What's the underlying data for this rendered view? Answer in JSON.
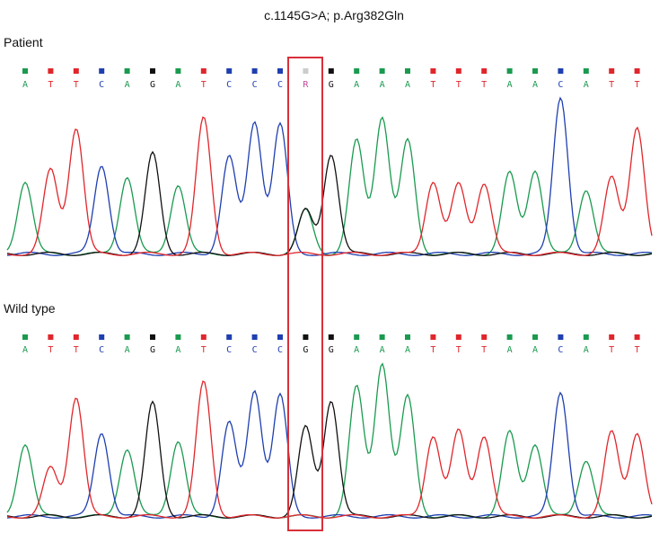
{
  "chart_data": {
    "type": "line",
    "title": "c.1145G>A; p.Arg382Gln",
    "colors": {
      "A": "#1a9a4f",
      "C": "#1f3fb0",
      "G": "#111111",
      "T": "#e0262b",
      "highlight": "#d9303a"
    },
    "highlight_position": 11,
    "panels": [
      {
        "label": "Patient",
        "bases": [
          "A",
          "T",
          "T",
          "C",
          "A",
          "G",
          "A",
          "T",
          "C",
          "C",
          "C",
          "R",
          "G",
          "A",
          "A",
          "A",
          "T",
          "T",
          "T",
          "A",
          "A",
          "C",
          "A",
          "T",
          "T"
        ],
        "quality": [
          "A",
          "T",
          "T",
          "C",
          "A",
          "G",
          "A",
          "T",
          "C",
          "C",
          "C",
          "R",
          "G",
          "A",
          "A",
          "A",
          "T",
          "T",
          "T",
          "A",
          "A",
          "C",
          "A",
          "T",
          "T"
        ],
        "peaks": [
          {
            "base": "A",
            "h": 0.45
          },
          {
            "base": "T",
            "h": 0.52
          },
          {
            "base": "T",
            "h": 0.78
          },
          {
            "base": "C",
            "h": 0.55
          },
          {
            "base": "A",
            "h": 0.48
          },
          {
            "base": "G",
            "h": 0.62
          },
          {
            "base": "A",
            "h": 0.43
          },
          {
            "base": "T",
            "h": 0.84
          },
          {
            "base": "C",
            "h": 0.6
          },
          {
            "base": "C",
            "h": 0.82
          },
          {
            "base": "C",
            "h": 0.8
          },
          {
            "base": "R",
            "h": 0.27
          },
          {
            "base": "G",
            "h": 0.62
          },
          {
            "base": "A",
            "h": 0.7
          },
          {
            "base": "A",
            "h": 0.85
          },
          {
            "base": "A",
            "h": 0.7
          },
          {
            "base": "T",
            "h": 0.45
          },
          {
            "base": "T",
            "h": 0.43
          },
          {
            "base": "T",
            "h": 0.44
          },
          {
            "base": "A",
            "h": 0.5
          },
          {
            "base": "A",
            "h": 0.52
          },
          {
            "base": "C",
            "h": 0.97
          },
          {
            "base": "A",
            "h": 0.4
          },
          {
            "base": "T",
            "h": 0.47
          },
          {
            "base": "T",
            "h": 0.79
          }
        ]
      },
      {
        "label": "Wild type",
        "bases": [
          "A",
          "T",
          "T",
          "C",
          "A",
          "G",
          "A",
          "T",
          "C",
          "C",
          "C",
          "G",
          "G",
          "A",
          "A",
          "A",
          "T",
          "T",
          "T",
          "A",
          "A",
          "C",
          "A",
          "T",
          "T"
        ],
        "peaks": [
          {
            "base": "A",
            "h": 0.45
          },
          {
            "base": "T",
            "h": 0.3
          },
          {
            "base": "T",
            "h": 0.74
          },
          {
            "base": "C",
            "h": 0.52
          },
          {
            "base": "A",
            "h": 0.42
          },
          {
            "base": "G",
            "h": 0.7
          },
          {
            "base": "A",
            "h": 0.47
          },
          {
            "base": "T",
            "h": 0.83
          },
          {
            "base": "C",
            "h": 0.58
          },
          {
            "base": "C",
            "h": 0.78
          },
          {
            "base": "C",
            "h": 0.75
          },
          {
            "base": "G",
            "h": 0.55
          },
          {
            "base": "G",
            "h": 0.72
          },
          {
            "base": "A",
            "h": 0.8
          },
          {
            "base": "A",
            "h": 0.95
          },
          {
            "base": "A",
            "h": 0.74
          },
          {
            "base": "T",
            "h": 0.5
          },
          {
            "base": "T",
            "h": 0.53
          },
          {
            "base": "T",
            "h": 0.5
          },
          {
            "base": "A",
            "h": 0.52
          },
          {
            "base": "A",
            "h": 0.45
          },
          {
            "base": "C",
            "h": 0.77
          },
          {
            "base": "A",
            "h": 0.35
          },
          {
            "base": "T",
            "h": 0.52
          },
          {
            "base": "T",
            "h": 0.52
          }
        ]
      }
    ]
  }
}
